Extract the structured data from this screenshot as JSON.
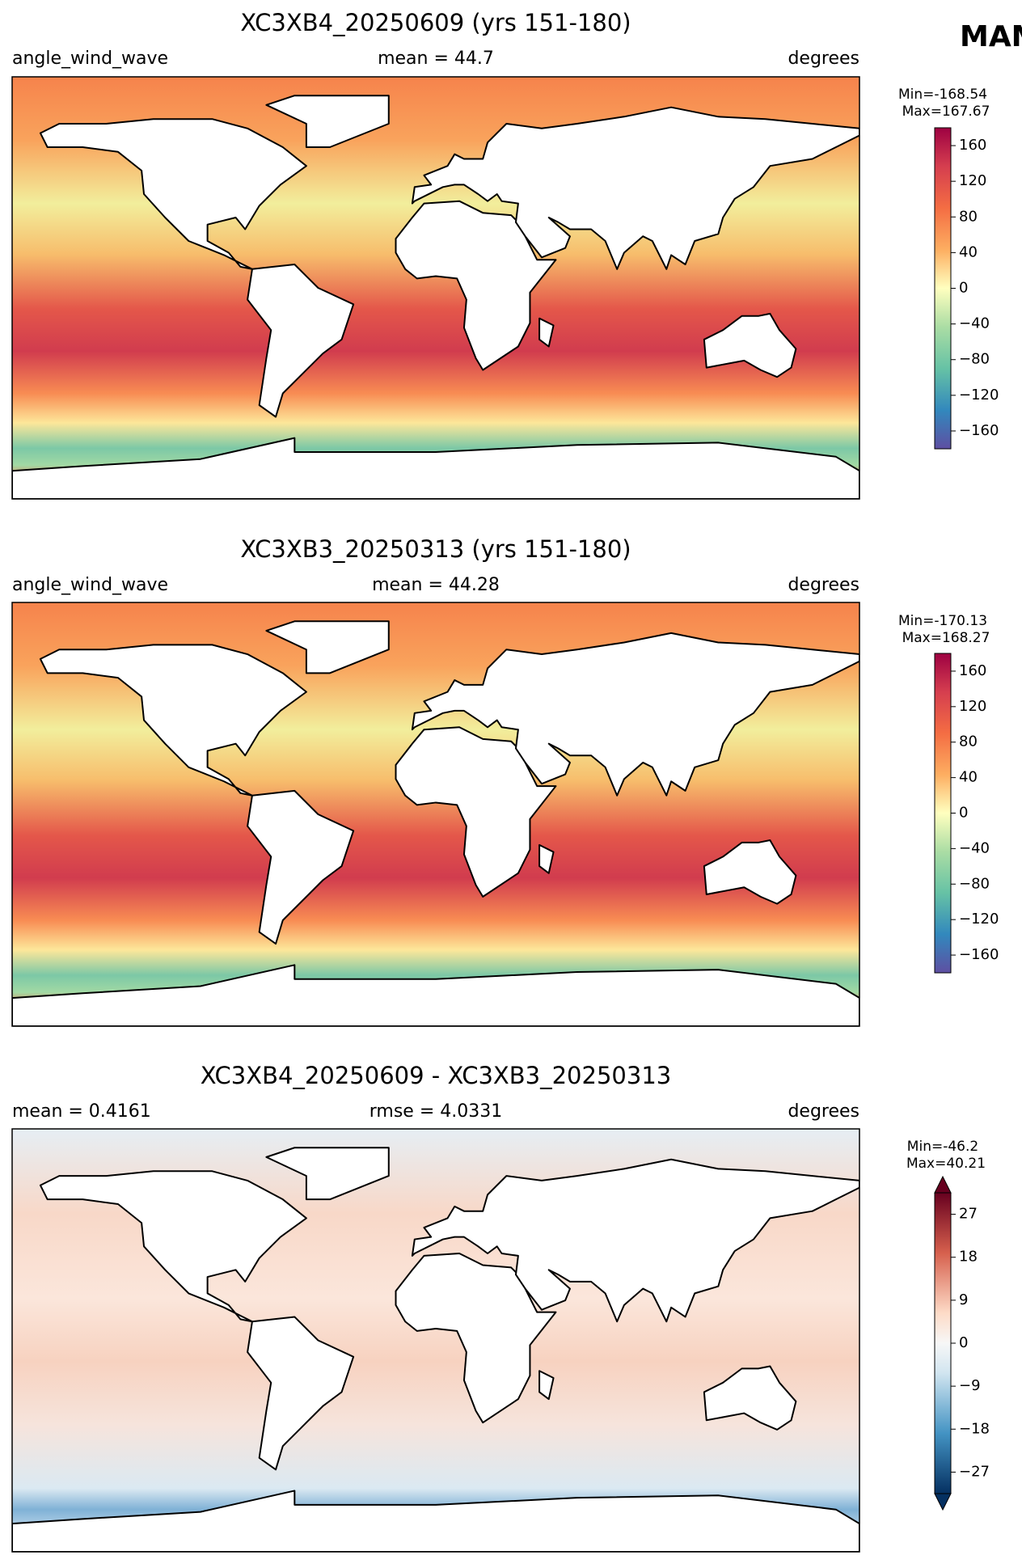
{
  "figure": {
    "season": "MAM",
    "panels": [
      {
        "title": "XC3XB4_20250609 (yrs 151-180)",
        "left": "angle_wind_wave",
        "center": "mean = 44.7",
        "right": "degrees",
        "min_label": "Min=-168.54",
        "max_label": "Max=167.67",
        "colorbar": {
          "lim": [
            -180,
            180
          ],
          "extend": "neither",
          "colormap": "spectral",
          "ticks": [
            {
              "value": -160,
              "label": "−160"
            },
            {
              "value": -120,
              "label": "−120"
            },
            {
              "value": -80,
              "label": "−80"
            },
            {
              "value": -40,
              "label": "−40"
            },
            0,
            40,
            80,
            120,
            160
          ]
        }
      },
      {
        "title": "XC3XB3_20250313 (yrs 151-180)",
        "left": "angle_wind_wave",
        "center": "mean = 44.28",
        "right": "degrees",
        "min_label": "Min=-170.13",
        "max_label": "Max=168.27",
        "colorbar": {
          "lim": [
            -180,
            180
          ],
          "extend": "neither",
          "colormap": "spectral",
          "ticks": [
            {
              "value": -160,
              "label": "−160"
            },
            {
              "value": -120,
              "label": "−120"
            },
            {
              "value": -80,
              "label": "−80"
            },
            {
              "value": -40,
              "label": "−40"
            },
            0,
            40,
            80,
            120,
            160
          ]
        }
      },
      {
        "title": "XC3XB4_20250609 - XC3XB3_20250313",
        "left": "mean = 0.4161",
        "center": "rmse = 4.0331",
        "right": "degrees",
        "min_label": "Min=-46.2",
        "max_label": "Max=40.21",
        "colorbar": {
          "lim": [
            -31.5,
            31.5
          ],
          "extend": "both",
          "colormap": "diverging",
          "ticks": [
            {
              "value": -27,
              "label": "−27"
            },
            {
              "value": -18,
              "label": "−18"
            },
            {
              "value": -9,
              "label": "−9"
            },
            0,
            9,
            18,
            27
          ]
        }
      }
    ]
  }
}
